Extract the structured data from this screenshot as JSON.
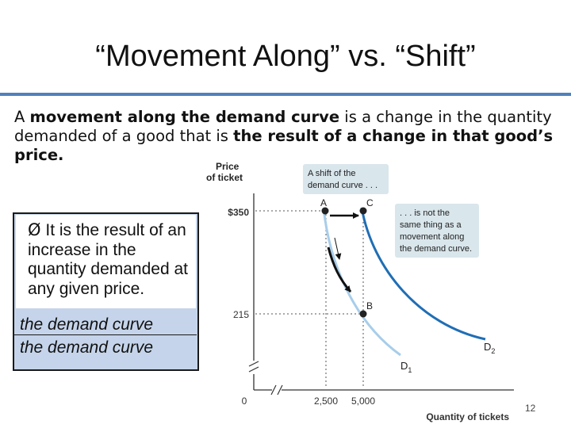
{
  "slide": {
    "title": "“Movement Along” vs. “Shift”",
    "paragraph": {
      "p1": "A ",
      "b1": "movement along the demand curve",
      "p2": " is a change in the quantity demanded of a good that is ",
      "b2": "the result of a change in that good’s price."
    },
    "bullet": {
      "marker": "Ø",
      "text": " It is the result of an increase in the quantity demanded at any given price."
    },
    "italic_lines": [
      "the demand curve",
      "the demand curve"
    ],
    "page_number": "12"
  },
  "figure": {
    "y_axis_label_line1": "Price",
    "y_axis_label_line2": "of ticket",
    "x_axis_label": "Quantity of tickets",
    "y_ticks": [
      "$350",
      "215",
      "0"
    ],
    "x_ticks": [
      "2,500",
      "5,000"
    ],
    "point_labels": {
      "A": "A",
      "B": "B",
      "C": "C"
    },
    "curve_labels": {
      "d1": "D",
      "d1_sub": "1",
      "d2": "D",
      "d2_sub": "2"
    },
    "callout_shift": [
      "A shift of the",
      "demand curve . . ."
    ],
    "callout_movement": [
      ". . . is not the",
      "same thing as a",
      "movement along",
      "the demand curve."
    ],
    "colors": {
      "accent_rule": "#4f81bd",
      "bullet_box": "#c5d4ea",
      "curve_d1": "#a8cdea",
      "curve_d2": "#1f6eb5",
      "callout_bg": "#d9e6ec"
    }
  }
}
